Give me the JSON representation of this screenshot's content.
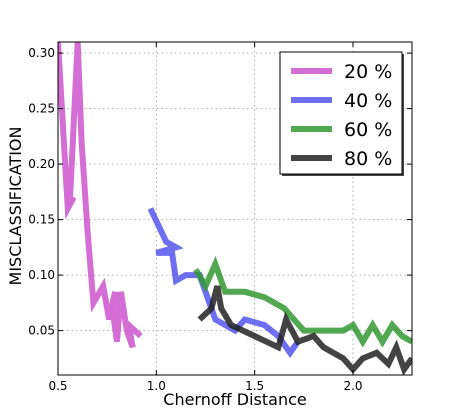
{
  "chart_data": {
    "type": "line",
    "title": "",
    "xlabel": "Chernoff Distance",
    "ylabel": "MISCLASSIFICATION",
    "xlim": [
      0.5,
      2.3
    ],
    "ylim": [
      0.01,
      0.31
    ],
    "xticks": [
      0.5,
      1.0,
      1.5,
      2.0
    ],
    "xtick_labels": [
      "0.5",
      "1.0",
      "1.5",
      "2.0"
    ],
    "yticks": [
      0.05,
      0.1,
      0.15,
      0.2,
      0.25,
      0.3
    ],
    "ytick_labels": [
      "0.05",
      "0.10",
      "0.15",
      "0.20",
      "0.25",
      "0.30"
    ],
    "grid": true,
    "legend_position": "top-right",
    "series": [
      {
        "name": "20 %",
        "color": "#cc55cc",
        "points": [
          [
            0.5,
            0.31
          ],
          [
            0.55,
            0.16
          ],
          [
            0.58,
            0.17
          ],
          [
            0.56,
            0.165
          ],
          [
            0.6,
            0.31
          ],
          [
            0.62,
            0.22
          ],
          [
            0.65,
            0.14
          ],
          [
            0.68,
            0.075
          ],
          [
            0.73,
            0.09
          ],
          [
            0.76,
            0.06
          ],
          [
            0.79,
            0.085
          ],
          [
            0.78,
            0.065
          ],
          [
            0.8,
            0.04
          ],
          [
            0.82,
            0.085
          ],
          [
            0.85,
            0.05
          ],
          [
            0.88,
            0.035
          ],
          [
            0.86,
            0.055
          ],
          [
            0.92,
            0.045
          ]
        ]
      },
      {
        "name": "40 %",
        "color": "#5555ee",
        "points": [
          [
            0.97,
            0.16
          ],
          [
            1.05,
            0.13
          ],
          [
            1.1,
            0.125
          ],
          [
            1.0,
            0.12
          ],
          [
            1.08,
            0.12
          ],
          [
            1.1,
            0.095
          ],
          [
            1.15,
            0.1
          ],
          [
            1.22,
            0.1
          ],
          [
            1.25,
            0.085
          ],
          [
            1.3,
            0.06
          ],
          [
            1.4,
            0.05
          ],
          [
            1.45,
            0.06
          ],
          [
            1.55,
            0.055
          ],
          [
            1.62,
            0.045
          ],
          [
            1.68,
            0.03
          ],
          [
            1.72,
            0.04
          ]
        ]
      },
      {
        "name": "60 %",
        "color": "#339933",
        "points": [
          [
            1.2,
            0.105
          ],
          [
            1.25,
            0.09
          ],
          [
            1.3,
            0.11
          ],
          [
            1.33,
            0.095
          ],
          [
            1.35,
            0.085
          ],
          [
            1.45,
            0.085
          ],
          [
            1.55,
            0.08
          ],
          [
            1.65,
            0.07
          ],
          [
            1.75,
            0.05
          ],
          [
            1.85,
            0.05
          ],
          [
            1.95,
            0.05
          ],
          [
            2.0,
            0.055
          ],
          [
            2.05,
            0.04
          ],
          [
            2.1,
            0.055
          ],
          [
            2.15,
            0.04
          ],
          [
            2.2,
            0.055
          ],
          [
            2.25,
            0.045
          ],
          [
            2.3,
            0.04
          ]
        ]
      },
      {
        "name": "80 %",
        "color": "#222222",
        "points": [
          [
            1.22,
            0.06
          ],
          [
            1.28,
            0.07
          ],
          [
            1.31,
            0.09
          ],
          [
            1.33,
            0.07
          ],
          [
            1.38,
            0.055
          ],
          [
            1.5,
            0.045
          ],
          [
            1.62,
            0.035
          ],
          [
            1.66,
            0.06
          ],
          [
            1.72,
            0.04
          ],
          [
            1.8,
            0.045
          ],
          [
            1.85,
            0.035
          ],
          [
            1.95,
            0.025
          ],
          [
            2.0,
            0.015
          ],
          [
            2.05,
            0.025
          ],
          [
            2.12,
            0.03
          ],
          [
            2.18,
            0.02
          ],
          [
            2.22,
            0.035
          ],
          [
            2.26,
            0.015
          ],
          [
            2.3,
            0.025
          ]
        ]
      }
    ]
  }
}
